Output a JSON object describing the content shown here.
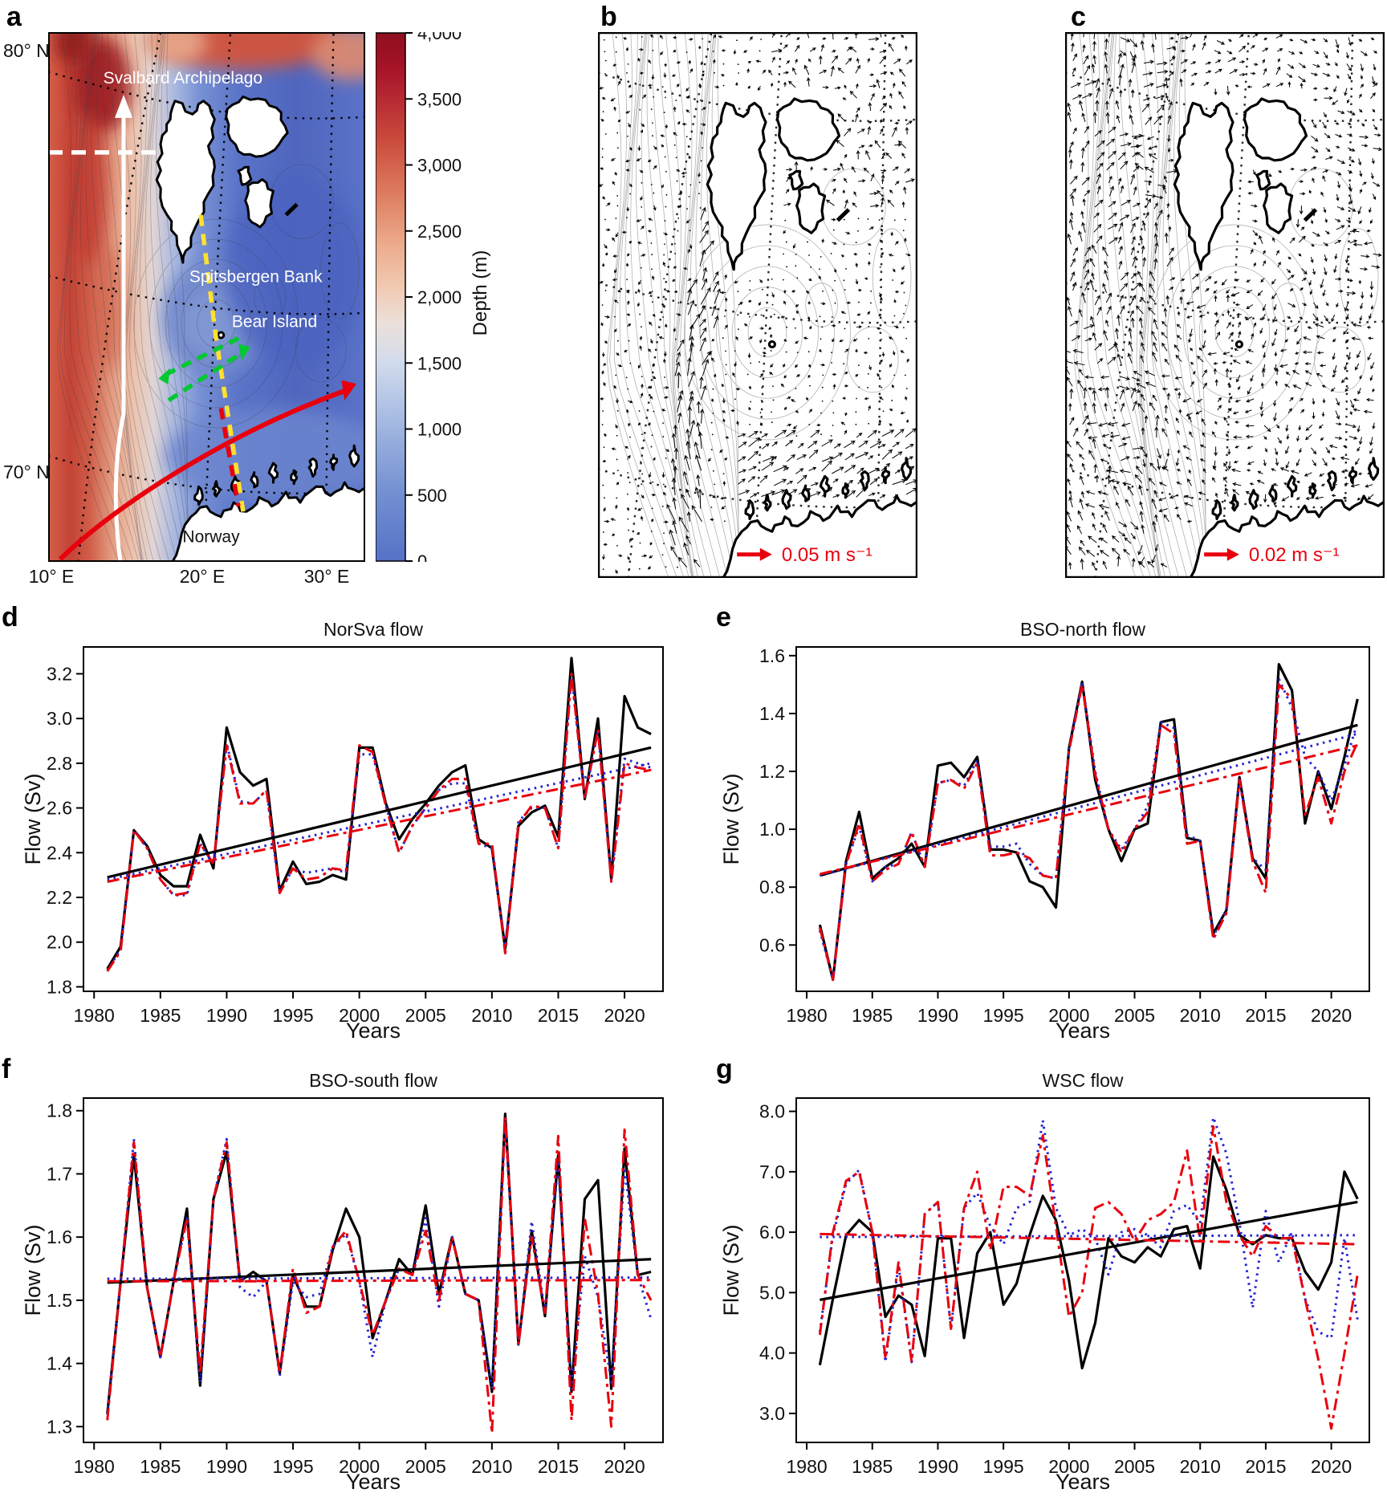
{
  "colors": {
    "black": "#000000",
    "red": "#e8000d",
    "blue": "#2222d0",
    "annotation_white": "#ffffff",
    "annotation_yellow": "#ffe12e",
    "annotation_green": "#00c832",
    "land_fill": "#ffffff"
  },
  "panels": {
    "a": {
      "label": "a",
      "lat_labels": [
        "80° N",
        "70° N"
      ],
      "lon_labels": [
        "10° E",
        "20° E",
        "30° E"
      ],
      "place_labels": {
        "svalbard": "Svalbard Archipelago",
        "spitsbergen_bank": "Spitsbergen Bank",
        "bear_island": "Bear Island",
        "norway": "Norway"
      },
      "colorbar": {
        "title": "Depth (m)",
        "ticks": [
          "4,000",
          "3,500",
          "3,000",
          "2,500",
          "2,000",
          "1,500",
          "1,000",
          "500",
          "0"
        ]
      }
    },
    "b": {
      "label": "b",
      "scale_label": "0.05 m s⁻¹"
    },
    "c": {
      "label": "c",
      "scale_label": "0.02 m s⁻¹"
    },
    "d": {
      "label": "d"
    },
    "e": {
      "label": "e"
    },
    "f": {
      "label": "f"
    },
    "g": {
      "label": "g"
    }
  },
  "chart_data": [
    {
      "panel": "d",
      "type": "line",
      "title": "NorSva flow",
      "xlabel": "Years",
      "ylabel": "Flow (Sv)",
      "x_range": [
        1979.2,
        2022.9
      ],
      "y_range": [
        1.78,
        3.32
      ],
      "xticks": [
        1980,
        1985,
        1990,
        1995,
        2000,
        2005,
        2010,
        2015,
        2020
      ],
      "xtick_labels": [
        "1980",
        "1985",
        "1990",
        "1995",
        "2000",
        "2005",
        "2010",
        "2015",
        "2020"
      ],
      "yticks": [
        1.8,
        2.0,
        2.2,
        2.4,
        2.6,
        2.8,
        3.0,
        3.2
      ],
      "ytick_labels": [
        "1.8",
        "2.0",
        "2.2",
        "2.4",
        "2.6",
        "2.8",
        "3.0",
        "3.2"
      ],
      "grid": false,
      "legend": "none",
      "x": [
        1981,
        1982,
        1983,
        1984,
        1985,
        1986,
        1987,
        1988,
        1989,
        1990,
        1991,
        1992,
        1993,
        1994,
        1995,
        1996,
        1997,
        1998,
        1999,
        2000,
        2001,
        2002,
        2003,
        2004,
        2005,
        2006,
        2007,
        2008,
        2009,
        2010,
        2011,
        2012,
        2013,
        2014,
        2015,
        2016,
        2017,
        2018,
        2019,
        2020,
        2021,
        2022
      ],
      "series": [
        {
          "name": "black-solid",
          "style": "black-solid",
          "values": [
            1.88,
            1.98,
            2.5,
            2.43,
            2.3,
            2.25,
            2.25,
            2.48,
            2.33,
            2.96,
            2.76,
            2.7,
            2.73,
            2.23,
            2.36,
            2.26,
            2.27,
            2.3,
            2.28,
            2.87,
            2.87,
            2.62,
            2.46,
            2.55,
            2.62,
            2.7,
            2.76,
            2.79,
            2.46,
            2.42,
            1.97,
            2.52,
            2.58,
            2.61,
            2.47,
            3.27,
            2.64,
            3.0,
            2.28,
            3.1,
            2.96,
            2.93
          ]
        },
        {
          "name": "blue-dotted",
          "style": "blue-dotted",
          "values": [
            1.87,
            1.97,
            2.5,
            2.42,
            2.28,
            2.21,
            2.21,
            2.44,
            2.35,
            2.89,
            2.63,
            2.62,
            2.68,
            2.22,
            2.33,
            2.31,
            2.32,
            2.33,
            2.31,
            2.84,
            2.84,
            2.61,
            2.4,
            2.52,
            2.6,
            2.68,
            2.71,
            2.71,
            2.44,
            2.42,
            1.98,
            2.54,
            2.6,
            2.6,
            2.42,
            3.2,
            2.64,
            2.95,
            2.28,
            2.82,
            2.8,
            2.78
          ]
        },
        {
          "name": "red-dashdot",
          "style": "red-dashdot",
          "values": [
            1.87,
            1.96,
            2.5,
            2.42,
            2.28,
            2.21,
            2.22,
            2.44,
            2.35,
            2.88,
            2.62,
            2.62,
            2.68,
            2.22,
            2.33,
            2.28,
            2.29,
            2.33,
            2.32,
            2.88,
            2.85,
            2.61,
            2.4,
            2.52,
            2.6,
            2.68,
            2.73,
            2.73,
            2.44,
            2.44,
            1.95,
            2.53,
            2.61,
            2.6,
            2.42,
            3.2,
            2.64,
            2.95,
            2.27,
            2.8,
            2.78,
            2.77
          ]
        }
      ],
      "trends": [
        {
          "style": "black-solid",
          "x": [
            1981,
            2022
          ],
          "y": [
            2.29,
            2.87
          ]
        },
        {
          "style": "blue-dotted",
          "x": [
            1981,
            2022
          ],
          "y": [
            2.28,
            2.8
          ]
        },
        {
          "style": "red-dashdot",
          "x": [
            1981,
            2022
          ],
          "y": [
            2.27,
            2.77
          ]
        }
      ]
    },
    {
      "panel": "e",
      "type": "line",
      "title": "BSO-north flow",
      "xlabel": "Years",
      "ylabel": "Flow (Sv)",
      "x_range": [
        1979.2,
        2022.9
      ],
      "y_range": [
        0.44,
        1.63
      ],
      "xticks": [
        1980,
        1985,
        1990,
        1995,
        2000,
        2005,
        2010,
        2015,
        2020
      ],
      "xtick_labels": [
        "1980",
        "1985",
        "1990",
        "1995",
        "2000",
        "2005",
        "2010",
        "2015",
        "2020"
      ],
      "yticks": [
        0.6,
        0.8,
        1.0,
        1.2,
        1.4,
        1.6
      ],
      "ytick_labels": [
        "0.6",
        "0.8",
        "1.0",
        "1.2",
        "1.4",
        "1.6"
      ],
      "grid": false,
      "legend": "none",
      "x": [
        1981,
        1982,
        1983,
        1984,
        1985,
        1986,
        1987,
        1988,
        1989,
        1990,
        1991,
        1992,
        1993,
        1994,
        1995,
        1996,
        1997,
        1998,
        1999,
        2000,
        2001,
        2002,
        2003,
        2004,
        2005,
        2006,
        2007,
        2008,
        2009,
        2010,
        2011,
        2012,
        2013,
        2014,
        2015,
        2016,
        2017,
        2018,
        2019,
        2020,
        2021,
        2022
      ],
      "series": [
        {
          "name": "black-solid",
          "style": "black-solid",
          "values": [
            0.67,
            0.48,
            0.89,
            1.06,
            0.83,
            0.87,
            0.9,
            0.95,
            0.87,
            1.22,
            1.23,
            1.18,
            1.25,
            0.93,
            0.93,
            0.92,
            0.82,
            0.8,
            0.73,
            1.28,
            1.51,
            1.17,
            1.0,
            0.89,
            1.0,
            1.02,
            1.37,
            1.38,
            0.97,
            0.96,
            0.64,
            0.72,
            1.18,
            0.9,
            0.83,
            1.57,
            1.48,
            1.02,
            1.2,
            1.07,
            1.25,
            1.45
          ]
        },
        {
          "name": "blue-dotted",
          "style": "blue-dotted",
          "values": [
            0.65,
            0.48,
            0.88,
            1.01,
            0.82,
            0.87,
            0.88,
            0.99,
            0.87,
            1.16,
            1.17,
            1.15,
            1.24,
            0.94,
            0.94,
            0.95,
            0.88,
            0.84,
            0.83,
            1.28,
            1.51,
            1.2,
            1.0,
            0.93,
            1.0,
            1.08,
            1.37,
            1.35,
            0.98,
            0.96,
            0.63,
            0.72,
            1.18,
            0.9,
            0.86,
            1.52,
            1.42,
            1.25,
            1.2,
            1.1,
            1.22,
            1.37
          ]
        },
        {
          "name": "red-dashdot",
          "style": "red-dashdot",
          "values": [
            0.66,
            0.48,
            0.88,
            1.02,
            0.82,
            0.86,
            0.88,
            0.99,
            0.87,
            1.16,
            1.17,
            1.14,
            1.23,
            0.91,
            0.91,
            0.92,
            0.9,
            0.84,
            0.83,
            1.27,
            1.5,
            1.19,
            1.0,
            0.92,
            1.0,
            1.06,
            1.36,
            1.33,
            0.95,
            0.96,
            0.62,
            0.71,
            1.17,
            0.89,
            0.78,
            1.5,
            1.45,
            1.05,
            1.18,
            1.02,
            1.2,
            1.3
          ]
        }
      ],
      "trends": [
        {
          "style": "black-solid",
          "x": [
            1981,
            2022
          ],
          "y": [
            0.84,
            1.36
          ]
        },
        {
          "style": "blue-dotted",
          "x": [
            1981,
            2022
          ],
          "y": [
            0.84,
            1.33
          ]
        },
        {
          "style": "red-dashdot",
          "x": [
            1981,
            2022
          ],
          "y": [
            0.845,
            1.29
          ]
        }
      ]
    },
    {
      "panel": "f",
      "type": "line",
      "title": "BSO-south flow",
      "xlabel": "Years",
      "ylabel": "Flow (Sv)",
      "x_range": [
        1979.2,
        2022.9
      ],
      "y_range": [
        1.275,
        1.82
      ],
      "xticks": [
        1980,
        1985,
        1990,
        1995,
        2000,
        2005,
        2010,
        2015,
        2020
      ],
      "xtick_labels": [
        "1980",
        "1985",
        "1990",
        "1995",
        "2000",
        "2005",
        "2010",
        "2015",
        "2020"
      ],
      "yticks": [
        1.3,
        1.4,
        1.5,
        1.6,
        1.7,
        1.8
      ],
      "ytick_labels": [
        "1.3",
        "1.4",
        "1.5",
        "1.6",
        "1.7",
        "1.8"
      ],
      "grid": false,
      "legend": "none",
      "x": [
        1981,
        1982,
        1983,
        1984,
        1985,
        1986,
        1987,
        1988,
        1989,
        1990,
        1991,
        1992,
        1993,
        1994,
        1995,
        1996,
        1997,
        1998,
        1999,
        2000,
        2001,
        2002,
        2003,
        2004,
        2005,
        2006,
        2007,
        2008,
        2009,
        2010,
        2011,
        2012,
        2013,
        2014,
        2015,
        2016,
        2017,
        2018,
        2019,
        2020,
        2021,
        2022
      ],
      "series": [
        {
          "name": "black-solid",
          "style": "black-solid",
          "values": [
            1.32,
            1.53,
            1.73,
            1.52,
            1.41,
            1.53,
            1.645,
            1.365,
            1.66,
            1.735,
            1.53,
            1.545,
            1.53,
            1.385,
            1.54,
            1.49,
            1.49,
            1.58,
            1.645,
            1.6,
            1.44,
            1.5,
            1.565,
            1.54,
            1.65,
            1.51,
            1.6,
            1.51,
            1.5,
            1.355,
            1.795,
            1.43,
            1.61,
            1.475,
            1.73,
            1.355,
            1.66,
            1.69,
            1.36,
            1.74,
            1.54,
            1.545
          ]
        },
        {
          "name": "blue-dotted",
          "style": "blue-dotted",
          "values": [
            1.32,
            1.53,
            1.755,
            1.52,
            1.41,
            1.53,
            1.63,
            1.37,
            1.66,
            1.755,
            1.52,
            1.505,
            1.53,
            1.38,
            1.53,
            1.505,
            1.51,
            1.585,
            1.605,
            1.53,
            1.41,
            1.5,
            1.55,
            1.54,
            1.63,
            1.49,
            1.6,
            1.51,
            1.5,
            1.36,
            1.78,
            1.43,
            1.625,
            1.48,
            1.72,
            1.36,
            1.57,
            1.505,
            1.37,
            1.71,
            1.54,
            1.47
          ]
        },
        {
          "name": "red-dashdot",
          "style": "red-dashdot",
          "values": [
            1.31,
            1.53,
            1.75,
            1.52,
            1.41,
            1.53,
            1.63,
            1.385,
            1.66,
            1.75,
            1.53,
            1.53,
            1.53,
            1.385,
            1.55,
            1.48,
            1.49,
            1.585,
            1.61,
            1.53,
            1.445,
            1.5,
            1.55,
            1.54,
            1.61,
            1.5,
            1.6,
            1.51,
            1.5,
            1.29,
            1.79,
            1.43,
            1.6,
            1.48,
            1.76,
            1.31,
            1.63,
            1.51,
            1.3,
            1.77,
            1.54,
            1.5
          ]
        }
      ],
      "trends": [
        {
          "style": "black-solid",
          "x": [
            1981,
            2022
          ],
          "y": [
            1.528,
            1.565
          ]
        },
        {
          "style": "blue-dotted",
          "x": [
            1981,
            2022
          ],
          "y": [
            1.534,
            1.536
          ]
        },
        {
          "style": "red-dashdot",
          "x": [
            1981,
            2022
          ],
          "y": [
            1.53,
            1.532
          ]
        }
      ]
    },
    {
      "panel": "g",
      "type": "line",
      "title": "WSC flow",
      "xlabel": "Years",
      "ylabel": "Flow (Sv)",
      "x_range": [
        1979.2,
        2022.9
      ],
      "y_range": [
        2.52,
        8.22
      ],
      "xticks": [
        1980,
        1985,
        1990,
        1995,
        2000,
        2005,
        2010,
        2015,
        2020
      ],
      "xtick_labels": [
        "1980",
        "1985",
        "1990",
        "1995",
        "2000",
        "2005",
        "2010",
        "2015",
        "2020"
      ],
      "yticks": [
        3.0,
        4.0,
        5.0,
        6.0,
        7.0,
        8.0
      ],
      "ytick_labels": [
        "3.0",
        "4.0",
        "5.0",
        "6.0",
        "7.0",
        "8.0"
      ],
      "grid": false,
      "legend": "none",
      "x": [
        1981,
        1982,
        1983,
        1984,
        1985,
        1986,
        1987,
        1988,
        1989,
        1990,
        1991,
        1992,
        1993,
        1994,
        1995,
        1996,
        1997,
        1998,
        1999,
        2000,
        2001,
        2002,
        2003,
        2004,
        2005,
        2006,
        2007,
        2008,
        2009,
        2010,
        2011,
        2012,
        2013,
        2014,
        2015,
        2016,
        2017,
        2018,
        2019,
        2020,
        2021,
        2022
      ],
      "series": [
        {
          "name": "black-solid",
          "style": "black-solid",
          "values": [
            3.8,
            4.9,
            5.95,
            6.2,
            6.0,
            4.6,
            4.95,
            4.8,
            3.95,
            5.9,
            5.9,
            4.25,
            5.65,
            6.0,
            4.8,
            5.15,
            5.95,
            6.6,
            6.2,
            5.2,
            3.75,
            4.5,
            5.9,
            5.6,
            5.5,
            5.75,
            5.6,
            6.05,
            6.1,
            5.4,
            7.25,
            6.7,
            5.95,
            5.8,
            5.95,
            5.9,
            5.9,
            5.35,
            5.05,
            5.5,
            7.0,
            6.55
          ]
        },
        {
          "name": "blue-dotted",
          "style": "blue-dotted",
          "values": [
            4.35,
            5.95,
            6.8,
            7.03,
            6.0,
            3.85,
            5.45,
            3.85,
            6.3,
            6.5,
            4.4,
            6.4,
            6.65,
            6.1,
            5.8,
            6.4,
            6.5,
            7.85,
            6.4,
            5.95,
            6.05,
            5.9,
            5.3,
            6.0,
            6.05,
            5.95,
            5.75,
            6.35,
            6.45,
            6.15,
            7.9,
            7.3,
            6.15,
            4.75,
            6.35,
            5.5,
            6.0,
            4.9,
            4.35,
            4.25,
            5.9,
            4.55
          ]
        },
        {
          "name": "red-dashdot",
          "style": "red-dashdot",
          "values": [
            4.3,
            6.0,
            6.85,
            7.0,
            6.0,
            3.9,
            5.5,
            3.85,
            6.3,
            6.5,
            4.4,
            6.4,
            7.0,
            5.7,
            6.75,
            6.75,
            6.6,
            7.6,
            6.1,
            4.6,
            5.0,
            6.4,
            6.5,
            6.3,
            5.85,
            6.2,
            6.3,
            6.5,
            7.35,
            5.85,
            7.75,
            6.5,
            5.95,
            5.6,
            6.1,
            5.9,
            5.9,
            4.9,
            3.9,
            2.75,
            4.0,
            5.3
          ]
        }
      ],
      "trends": [
        {
          "style": "black-solid",
          "x": [
            1981,
            2022
          ],
          "y": [
            4.88,
            6.5
          ]
        },
        {
          "style": "blue-dotted",
          "x": [
            1981,
            2022
          ],
          "y": [
            5.92,
            5.95
          ]
        },
        {
          "style": "red-dashdot",
          "x": [
            1981,
            2022
          ],
          "y": [
            5.97,
            5.8
          ]
        }
      ]
    }
  ]
}
